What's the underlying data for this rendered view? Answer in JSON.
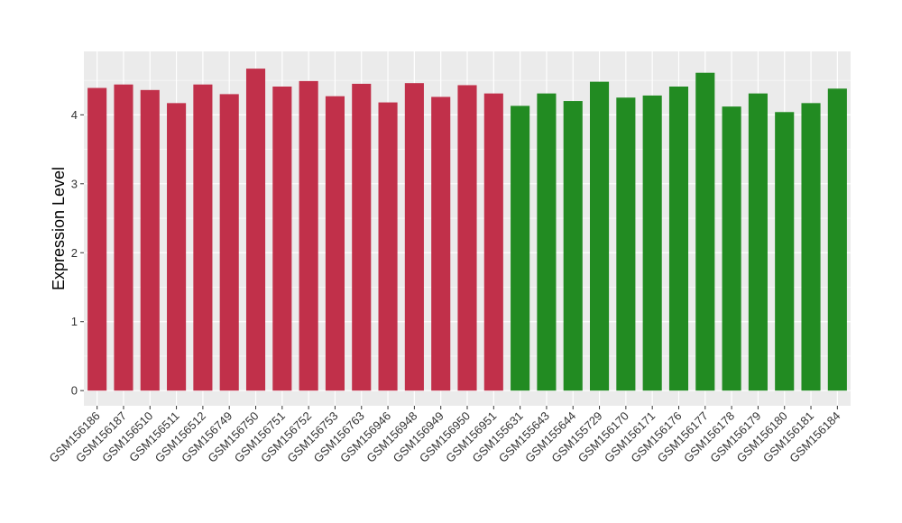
{
  "chart_data": {
    "type": "bar",
    "title": "",
    "xlabel": "",
    "ylabel": "Expression Level",
    "ylim": [
      -0.22,
      4.92
    ],
    "yticks": [
      0,
      1,
      2,
      3,
      4
    ],
    "grid": true,
    "legend": "none",
    "panel_background": "#EBEBEB",
    "colors": {
      "group1": "#C1304A",
      "group2": "#228B22"
    },
    "categories": [
      "GSM156186",
      "GSM156187",
      "GSM156510",
      "GSM156511",
      "GSM156512",
      "GSM156749",
      "GSM156750",
      "GSM156751",
      "GSM156752",
      "GSM156753",
      "GSM156763",
      "GSM156946",
      "GSM156948",
      "GSM156949",
      "GSM156950",
      "GSM156951",
      "GSM155631",
      "GSM155643",
      "GSM155644",
      "GSM155729",
      "GSM156170",
      "GSM156171",
      "GSM156176",
      "GSM156177",
      "GSM156178",
      "GSM156179",
      "GSM156180",
      "GSM156181",
      "GSM156184"
    ],
    "values": [
      4.39,
      4.44,
      4.36,
      4.17,
      4.44,
      4.3,
      4.67,
      4.41,
      4.49,
      4.27,
      4.45,
      4.18,
      4.46,
      4.26,
      4.43,
      4.31,
      4.13,
      4.31,
      4.2,
      4.48,
      4.25,
      4.28,
      4.41,
      4.61,
      4.12,
      4.31,
      4.04,
      4.17,
      4.38
    ],
    "groups": [
      "group1",
      "group1",
      "group1",
      "group1",
      "group1",
      "group1",
      "group1",
      "group1",
      "group1",
      "group1",
      "group1",
      "group1",
      "group1",
      "group1",
      "group1",
      "group1",
      "group2",
      "group2",
      "group2",
      "group2",
      "group2",
      "group2",
      "group2",
      "group2",
      "group2",
      "group2",
      "group2",
      "group2",
      "group2"
    ]
  }
}
